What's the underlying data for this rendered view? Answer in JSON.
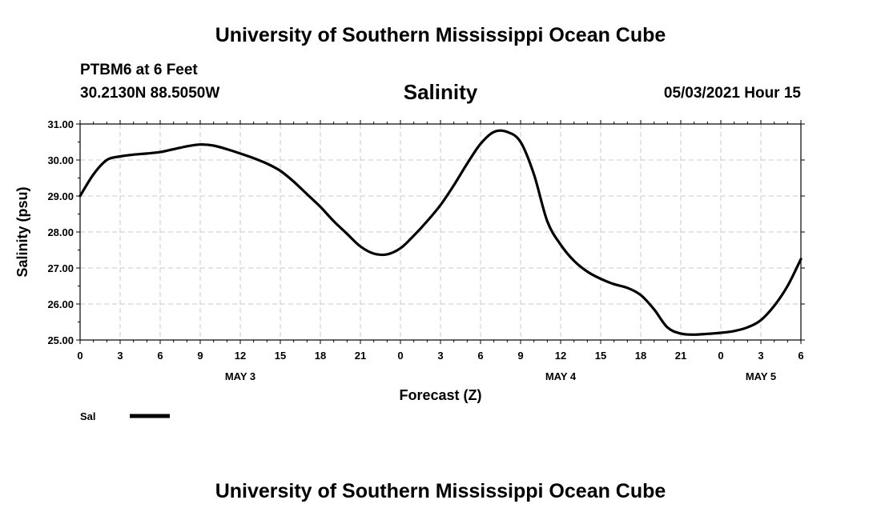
{
  "header": {
    "title": "University of Southern Mississippi Ocean Cube",
    "station": "PTBM6 at 6 Feet",
    "coords": "30.2130N  88.5050W",
    "timestamp": "05/03/2021 Hour 15"
  },
  "footer": {
    "title": "University of Southern Mississippi Ocean Cube"
  },
  "colors": {
    "line": "#000000",
    "grid": "#c8c8c8",
    "background": "#ffffff"
  },
  "chart_data": {
    "type": "line",
    "title": "Salinity",
    "xlabel": "Forecast (Z)",
    "ylabel": "Salinity (psu)",
    "ylim": [
      25.0,
      31.0
    ],
    "xlim_hours": [
      0,
      54
    ],
    "yticks": [
      "25.00",
      "26.00",
      "27.00",
      "28.00",
      "29.00",
      "30.00",
      "31.00"
    ],
    "xticks": [
      "0",
      "3",
      "6",
      "9",
      "12",
      "15",
      "18",
      "21",
      "0",
      "3",
      "6",
      "9",
      "12",
      "15",
      "18",
      "21",
      "0",
      "3",
      "6"
    ],
    "day_labels": [
      {
        "label": "MAY 3",
        "hour": 12
      },
      {
        "label": "MAY 4",
        "hour": 36
      },
      {
        "label": "MAY 5",
        "hour": 51
      }
    ],
    "grid": true,
    "legend": "bottom-left",
    "series": [
      {
        "name": "Sal",
        "x": [
          0,
          1,
          2,
          3,
          4,
          5,
          6,
          7,
          8,
          9,
          10,
          11,
          12,
          13,
          14,
          15,
          16,
          17,
          18,
          19,
          20,
          21,
          22,
          23,
          24,
          25,
          26,
          27,
          28,
          29,
          30,
          31,
          32,
          33,
          34,
          35,
          36,
          37,
          38,
          39,
          40,
          41,
          42,
          43,
          44,
          45,
          46,
          47,
          48,
          49,
          50,
          51,
          52,
          53,
          54
        ],
        "y": [
          29.0,
          29.6,
          30.0,
          30.1,
          30.15,
          30.18,
          30.22,
          30.3,
          30.38,
          30.43,
          30.4,
          30.3,
          30.18,
          30.05,
          29.9,
          29.7,
          29.4,
          29.05,
          28.7,
          28.3,
          27.95,
          27.6,
          27.4,
          27.38,
          27.55,
          27.9,
          28.3,
          28.75,
          29.3,
          29.9,
          30.45,
          30.78,
          30.78,
          30.5,
          29.6,
          28.3,
          27.65,
          27.2,
          26.9,
          26.7,
          26.55,
          26.45,
          26.25,
          25.85,
          25.35,
          25.18,
          25.15,
          25.17,
          25.2,
          25.25,
          25.35,
          25.55,
          25.95,
          26.5,
          27.25
        ]
      }
    ]
  }
}
